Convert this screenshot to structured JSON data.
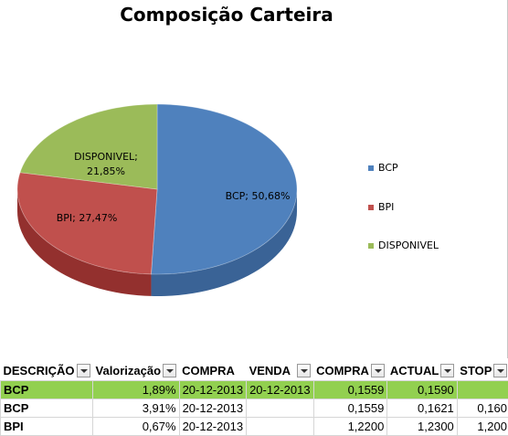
{
  "chart_data": {
    "type": "pie",
    "title": "Composição Carteira",
    "slices": [
      {
        "label": "BCP",
        "value": 50.68,
        "data_label": "BCP; 50,68%",
        "color": "#4f81bd",
        "side_color": "#3a6396"
      },
      {
        "label": "BPI",
        "value": 27.47,
        "data_label": "BPI; 27,47%",
        "color": "#c0504d",
        "side_color": "#93302e"
      },
      {
        "label": "DISPONIVEL",
        "value": 21.85,
        "data_label_line1": "DISPONIVEL;",
        "data_label_line2": "21,85%",
        "color": "#9bbb59",
        "side_color": "#76923c"
      }
    ],
    "legend": [
      "BCP",
      "BPI",
      "DISPONIVEL"
    ],
    "legend_position": "right",
    "style": "3d"
  },
  "table": {
    "headers": [
      "DESCRIÇÃO",
      "Valorização",
      "COMPRA",
      "VENDA",
      "COMPRA",
      "ACTUAL",
      "STOP"
    ],
    "rows": [
      {
        "highlight": true,
        "cells": [
          "BCP",
          "1,89%",
          "20-12-2013",
          "20-12-2013",
          "0,1559",
          "0,1590",
          ""
        ]
      },
      {
        "highlight": false,
        "cells": [
          "BCP",
          "3,91%",
          "20-12-2013",
          "",
          "0,1559",
          "0,1621",
          "0,160"
        ]
      },
      {
        "highlight": false,
        "cells": [
          "BPI",
          "0,67%",
          "20-12-2013",
          "",
          "1,2200",
          "1,2300",
          "1,200"
        ]
      }
    ]
  }
}
